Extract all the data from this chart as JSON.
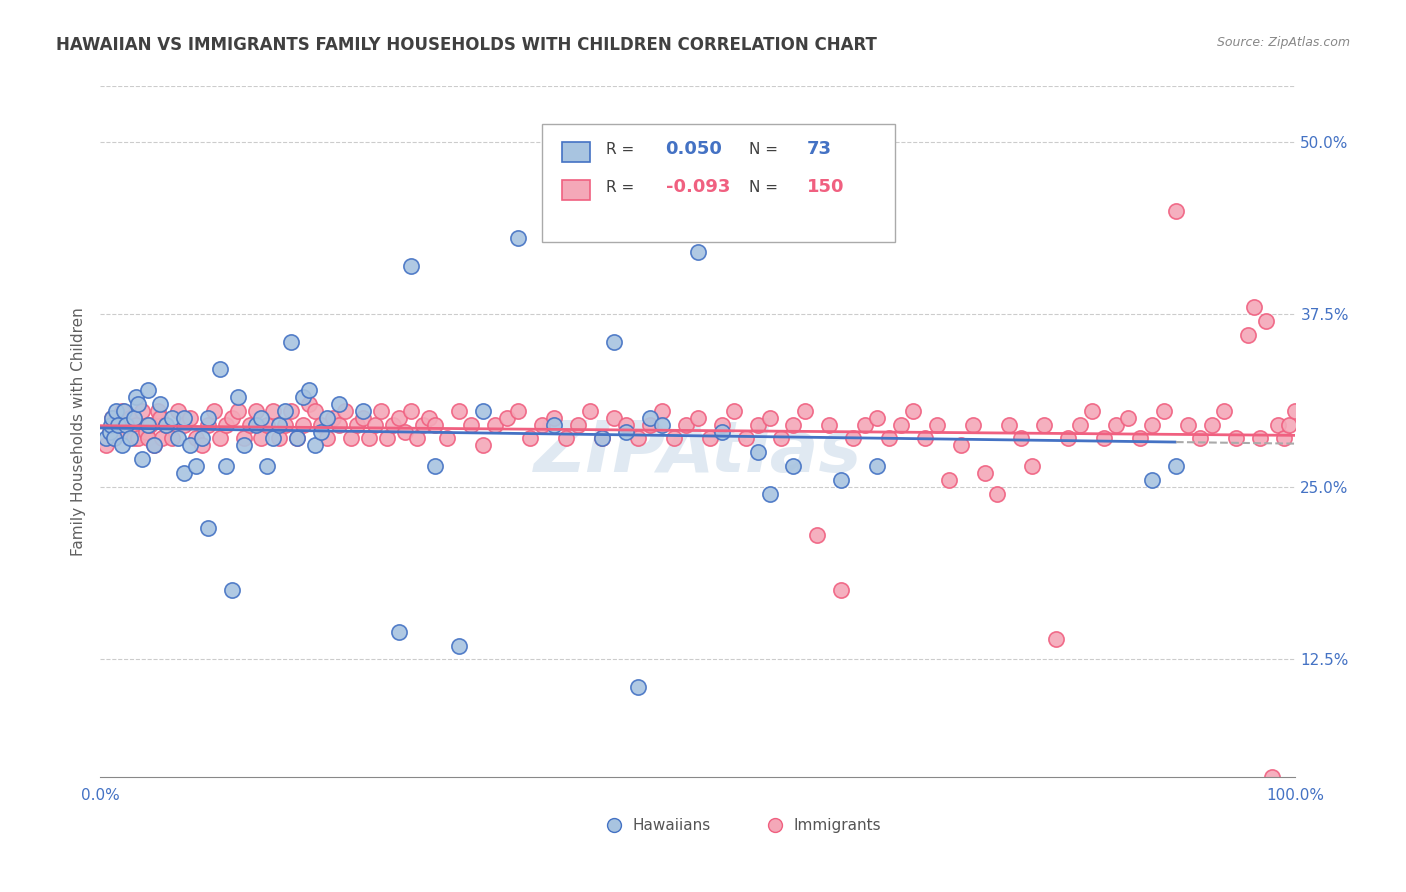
{
  "title": "HAWAIIAN VS IMMIGRANTS FAMILY HOUSEHOLDS WITH CHILDREN CORRELATION CHART",
  "source": "Source: ZipAtlas.com",
  "ylabel": "Family Households with Children",
  "ytick_labels": [
    "12.5%",
    "25.0%",
    "37.5%",
    "50.0%"
  ],
  "ytick_values": [
    0.125,
    0.25,
    0.375,
    0.5
  ],
  "xmin": 0.0,
  "xmax": 1.0,
  "ymin": 0.04,
  "ymax": 0.54,
  "hawaiians_R": 0.05,
  "hawaiians_N": 73,
  "immigrants_R": -0.093,
  "immigrants_N": 150,
  "hawaiians_color": "#a8c4e0",
  "immigrants_color": "#f4a8b8",
  "hawaiians_line_color": "#4472c4",
  "immigrants_line_color": "#f06080",
  "legend_label_hawaiians": "Hawaiians",
  "legend_label_immigrants": "Immigrants",
  "watermark": "ZIPAtlas",
  "background_color": "#ffffff",
  "grid_color": "#cccccc",
  "title_color": "#404040",
  "axis_label_color": "#4472c4",
  "trend_dash_color": "#aaaaaa",
  "hawaiians_scatter": [
    [
      0.005,
      0.285
    ],
    [
      0.008,
      0.29
    ],
    [
      0.009,
      0.295
    ],
    [
      0.01,
      0.3
    ],
    [
      0.012,
      0.285
    ],
    [
      0.013,
      0.305
    ],
    [
      0.015,
      0.295
    ],
    [
      0.018,
      0.28
    ],
    [
      0.02,
      0.305
    ],
    [
      0.022,
      0.295
    ],
    [
      0.025,
      0.285
    ],
    [
      0.028,
      0.3
    ],
    [
      0.03,
      0.315
    ],
    [
      0.032,
      0.31
    ],
    [
      0.035,
      0.27
    ],
    [
      0.04,
      0.32
    ],
    [
      0.04,
      0.295
    ],
    [
      0.045,
      0.28
    ],
    [
      0.05,
      0.31
    ],
    [
      0.055,
      0.295
    ],
    [
      0.06,
      0.3
    ],
    [
      0.065,
      0.285
    ],
    [
      0.07,
      0.3
    ],
    [
      0.07,
      0.26
    ],
    [
      0.075,
      0.28
    ],
    [
      0.08,
      0.265
    ],
    [
      0.085,
      0.285
    ],
    [
      0.09,
      0.22
    ],
    [
      0.09,
      0.3
    ],
    [
      0.1,
      0.335
    ],
    [
      0.105,
      0.265
    ],
    [
      0.11,
      0.175
    ],
    [
      0.115,
      0.315
    ],
    [
      0.12,
      0.28
    ],
    [
      0.13,
      0.295
    ],
    [
      0.135,
      0.3
    ],
    [
      0.14,
      0.265
    ],
    [
      0.145,
      0.285
    ],
    [
      0.15,
      0.295
    ],
    [
      0.155,
      0.305
    ],
    [
      0.16,
      0.355
    ],
    [
      0.165,
      0.285
    ],
    [
      0.17,
      0.315
    ],
    [
      0.175,
      0.32
    ],
    [
      0.18,
      0.28
    ],
    [
      0.185,
      0.29
    ],
    [
      0.19,
      0.3
    ],
    [
      0.2,
      0.31
    ],
    [
      0.22,
      0.305
    ],
    [
      0.25,
      0.145
    ],
    [
      0.26,
      0.41
    ],
    [
      0.28,
      0.265
    ],
    [
      0.3,
      0.135
    ],
    [
      0.32,
      0.305
    ],
    [
      0.35,
      0.43
    ],
    [
      0.38,
      0.295
    ],
    [
      0.42,
      0.285
    ],
    [
      0.43,
      0.355
    ],
    [
      0.44,
      0.29
    ],
    [
      0.45,
      0.105
    ],
    [
      0.46,
      0.3
    ],
    [
      0.47,
      0.295
    ],
    [
      0.48,
      0.46
    ],
    [
      0.5,
      0.42
    ],
    [
      0.52,
      0.29
    ],
    [
      0.55,
      0.275
    ],
    [
      0.56,
      0.245
    ],
    [
      0.58,
      0.265
    ],
    [
      0.62,
      0.255
    ],
    [
      0.65,
      0.265
    ],
    [
      0.88,
      0.255
    ],
    [
      0.9,
      0.265
    ]
  ],
  "immigrants_scatter": [
    [
      0.005,
      0.28
    ],
    [
      0.008,
      0.29
    ],
    [
      0.01,
      0.3
    ],
    [
      0.012,
      0.285
    ],
    [
      0.015,
      0.295
    ],
    [
      0.018,
      0.305
    ],
    [
      0.02,
      0.295
    ],
    [
      0.022,
      0.29
    ],
    [
      0.025,
      0.3
    ],
    [
      0.028,
      0.285
    ],
    [
      0.03,
      0.295
    ],
    [
      0.032,
      0.285
    ],
    [
      0.035,
      0.305
    ],
    [
      0.038,
      0.29
    ],
    [
      0.04,
      0.285
    ],
    [
      0.042,
      0.295
    ],
    [
      0.045,
      0.28
    ],
    [
      0.048,
      0.305
    ],
    [
      0.05,
      0.3
    ],
    [
      0.052,
      0.285
    ],
    [
      0.055,
      0.295
    ],
    [
      0.06,
      0.285
    ],
    [
      0.065,
      0.305
    ],
    [
      0.07,
      0.295
    ],
    [
      0.075,
      0.3
    ],
    [
      0.08,
      0.285
    ],
    [
      0.085,
      0.28
    ],
    [
      0.09,
      0.295
    ],
    [
      0.095,
      0.305
    ],
    [
      0.1,
      0.285
    ],
    [
      0.105,
      0.295
    ],
    [
      0.11,
      0.3
    ],
    [
      0.115,
      0.305
    ],
    [
      0.12,
      0.285
    ],
    [
      0.125,
      0.295
    ],
    [
      0.13,
      0.305
    ],
    [
      0.135,
      0.285
    ],
    [
      0.14,
      0.295
    ],
    [
      0.145,
      0.305
    ],
    [
      0.15,
      0.285
    ],
    [
      0.155,
      0.295
    ],
    [
      0.16,
      0.305
    ],
    [
      0.165,
      0.285
    ],
    [
      0.17,
      0.295
    ],
    [
      0.175,
      0.31
    ],
    [
      0.18,
      0.305
    ],
    [
      0.185,
      0.295
    ],
    [
      0.19,
      0.285
    ],
    [
      0.195,
      0.3
    ],
    [
      0.2,
      0.295
    ],
    [
      0.205,
      0.305
    ],
    [
      0.21,
      0.285
    ],
    [
      0.215,
      0.295
    ],
    [
      0.22,
      0.3
    ],
    [
      0.225,
      0.285
    ],
    [
      0.23,
      0.295
    ],
    [
      0.235,
      0.305
    ],
    [
      0.24,
      0.285
    ],
    [
      0.245,
      0.295
    ],
    [
      0.25,
      0.3
    ],
    [
      0.255,
      0.29
    ],
    [
      0.26,
      0.305
    ],
    [
      0.265,
      0.285
    ],
    [
      0.27,
      0.295
    ],
    [
      0.275,
      0.3
    ],
    [
      0.28,
      0.295
    ],
    [
      0.29,
      0.285
    ],
    [
      0.3,
      0.305
    ],
    [
      0.31,
      0.295
    ],
    [
      0.32,
      0.28
    ],
    [
      0.33,
      0.295
    ],
    [
      0.34,
      0.3
    ],
    [
      0.35,
      0.305
    ],
    [
      0.36,
      0.285
    ],
    [
      0.37,
      0.295
    ],
    [
      0.38,
      0.3
    ],
    [
      0.39,
      0.285
    ],
    [
      0.4,
      0.295
    ],
    [
      0.41,
      0.305
    ],
    [
      0.42,
      0.285
    ],
    [
      0.43,
      0.3
    ],
    [
      0.44,
      0.295
    ],
    [
      0.45,
      0.285
    ],
    [
      0.46,
      0.295
    ],
    [
      0.47,
      0.305
    ],
    [
      0.48,
      0.285
    ],
    [
      0.49,
      0.295
    ],
    [
      0.5,
      0.3
    ],
    [
      0.51,
      0.285
    ],
    [
      0.52,
      0.295
    ],
    [
      0.53,
      0.305
    ],
    [
      0.54,
      0.285
    ],
    [
      0.55,
      0.295
    ],
    [
      0.56,
      0.3
    ],
    [
      0.57,
      0.285
    ],
    [
      0.58,
      0.295
    ],
    [
      0.59,
      0.305
    ],
    [
      0.6,
      0.215
    ],
    [
      0.61,
      0.295
    ],
    [
      0.62,
      0.175
    ],
    [
      0.63,
      0.285
    ],
    [
      0.64,
      0.295
    ],
    [
      0.65,
      0.3
    ],
    [
      0.66,
      0.285
    ],
    [
      0.67,
      0.295
    ],
    [
      0.68,
      0.305
    ],
    [
      0.69,
      0.285
    ],
    [
      0.7,
      0.295
    ],
    [
      0.71,
      0.255
    ],
    [
      0.72,
      0.28
    ],
    [
      0.73,
      0.295
    ],
    [
      0.74,
      0.26
    ],
    [
      0.75,
      0.245
    ],
    [
      0.76,
      0.295
    ],
    [
      0.77,
      0.285
    ],
    [
      0.78,
      0.265
    ],
    [
      0.79,
      0.295
    ],
    [
      0.8,
      0.14
    ],
    [
      0.81,
      0.285
    ],
    [
      0.82,
      0.295
    ],
    [
      0.83,
      0.305
    ],
    [
      0.84,
      0.285
    ],
    [
      0.85,
      0.295
    ],
    [
      0.86,
      0.3
    ],
    [
      0.87,
      0.285
    ],
    [
      0.88,
      0.295
    ],
    [
      0.89,
      0.305
    ],
    [
      0.9,
      0.45
    ],
    [
      0.91,
      0.295
    ],
    [
      0.92,
      0.285
    ],
    [
      0.93,
      0.295
    ],
    [
      0.94,
      0.305
    ],
    [
      0.95,
      0.285
    ],
    [
      0.96,
      0.36
    ],
    [
      0.965,
      0.38
    ],
    [
      0.97,
      0.285
    ],
    [
      0.975,
      0.37
    ],
    [
      0.98,
      0.04
    ],
    [
      0.985,
      0.295
    ],
    [
      0.99,
      0.285
    ],
    [
      0.995,
      0.295
    ],
    [
      1.0,
      0.305
    ]
  ]
}
